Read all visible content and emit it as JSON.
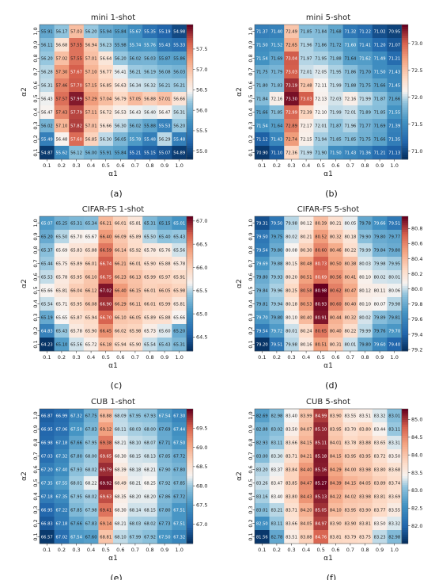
{
  "figure": {
    "colormap": {
      "low": "#1f4e8c",
      "mid": "#f7f4f2",
      "high": "#67001f"
    },
    "panels": [
      {
        "key": "a",
        "label": "(a)",
        "chart_data": {
          "type": "heatmap",
          "title": "mini 1-shot",
          "xlabel": "α1",
          "ylabel": "α2",
          "x": [
            "0.1",
            "0.2",
            "0.3",
            "0.4",
            "0.5",
            "0.6",
            "0.7",
            "0.8",
            "0.9",
            "1.0"
          ],
          "y": [
            "1.0",
            "0.9",
            "0.8",
            "0.7",
            "0.6",
            "0.5",
            "0.4",
            "0.3",
            "0.2",
            "0.1"
          ],
          "z_range": [
            54.8,
            58.1
          ],
          "colorbar_ticks": [
            "55.0",
            "55.5",
            "56.0",
            "56.5",
            "57.0",
            "57.5"
          ],
          "values": [
            [
              55.91,
              56.17,
              57.03,
              56.2,
              55.94,
              55.84,
              55.67,
              55.35,
              55.19,
              54.98
            ],
            [
              56.11,
              56.68,
              57.55,
              56.94,
              56.23,
              55.98,
              55.74,
              55.76,
              55.43,
              55.33
            ],
            [
              56.2,
              57.02,
              57.55,
              57.01,
              56.64,
              56.2,
              56.02,
              56.03,
              55.87,
              55.86
            ],
            [
              56.28,
              57.3,
              57.67,
              57.1,
              56.77,
              56.41,
              56.21,
              56.19,
              56.08,
              56.03
            ],
            [
              56.31,
              57.46,
              57.7,
              57.15,
              56.85,
              56.63,
              56.34,
              56.32,
              56.21,
              56.21
            ],
            [
              56.43,
              57.57,
              57.99,
              57.29,
              57.04,
              56.79,
              57.05,
              56.88,
              57.01,
              56.66
            ],
            [
              56.47,
              57.43,
              57.79,
              57.11,
              56.72,
              56.53,
              56.43,
              56.4,
              56.47,
              56.31
            ],
            [
              56.02,
              57.1,
              57.82,
              57.01,
              56.66,
              56.3,
              56.02,
              55.88,
              55.53,
              56.2
            ],
            [
              55.49,
              56.48,
              57.6,
              56.85,
              56.3,
              56.05,
              55.78,
              55.48,
              56.29,
              55.48
            ],
            [
              54.87,
              55.62,
              56.12,
              56.0,
              55.91,
              55.84,
              55.21,
              55.15,
              55.07,
              54.89
            ]
          ]
        }
      },
      {
        "key": "b",
        "label": "(b)",
        "chart_data": {
          "type": "heatmap",
          "title": "mini 5-shot",
          "xlabel": "α1",
          "ylabel": "α2",
          "x": [
            "0.1",
            "0.2",
            "0.3",
            "0.4",
            "0.5",
            "0.6",
            "0.7",
            "0.8",
            "0.9",
            "1.0"
          ],
          "y": [
            "1.0",
            "0.9",
            "0.8",
            "0.7",
            "0.6",
            "0.5",
            "0.4",
            "0.3",
            "0.2",
            "0.1"
          ],
          "z_range": [
            70.85,
            73.35
          ],
          "colorbar_ticks": [
            "71.0",
            "71.5",
            "72.0",
            "72.5",
            "73.0"
          ],
          "values": [
            [
              71.37,
              71.4,
              72.49,
              71.85,
              71.84,
              71.68,
              71.32,
              71.22,
              71.02,
              70.95
            ],
            [
              71.5,
              71.52,
              72.65,
              71.96,
              71.86,
              71.72,
              71.6,
              71.41,
              71.2,
              71.07
            ],
            [
              71.54,
              71.69,
              73.04,
              71.97,
              71.95,
              71.88,
              71.64,
              71.62,
              71.49,
              71.21
            ],
            [
              71.75,
              71.79,
              73.03,
              72.01,
              72.05,
              71.95,
              71.86,
              71.7,
              71.5,
              71.43
            ],
            [
              71.8,
              71.83,
              73.19,
              72.48,
              72.11,
              71.99,
              71.88,
              71.75,
              71.66,
              71.45
            ],
            [
              71.84,
              72.16,
              73.3,
              73.03,
              72.13,
              72.03,
              72.16,
              71.99,
              71.87,
              71.66
            ],
            [
              71.66,
              71.85,
              72.99,
              72.39,
              72.1,
              71.99,
              72.01,
              71.89,
              71.85,
              71.55
            ],
            [
              71.54,
              71.64,
              72.89,
              72.17,
              72.01,
              71.87,
              71.96,
              71.77,
              71.69,
              71.39
            ],
            [
              71.12,
              71.43,
              72.74,
              72.15,
              71.94,
              71.85,
              71.85,
              71.75,
              71.66,
              71.35
            ],
            [
              70.9,
              71.1,
              72.36,
              71.99,
              71.9,
              71.5,
              71.43,
              71.36,
              71.21,
              71.13
            ]
          ]
        }
      },
      {
        "key": "c",
        "label": "(c)",
        "chart_data": {
          "type": "heatmap",
          "title": "CIFAR-FS 1-shot",
          "xlabel": "α1",
          "ylabel": "α2",
          "x": [
            "0.1",
            "0.2",
            "0.3",
            "0.4",
            "0.5",
            "0.6",
            "0.7",
            "0.8",
            "0.9",
            "1.0"
          ],
          "y": [
            "1.0",
            "0.9",
            "0.8",
            "0.7",
            "0.6",
            "0.5",
            "0.4",
            "0.3",
            "0.2",
            "0.1"
          ],
          "z_range": [
            64.2,
            67.1
          ],
          "colorbar_ticks": [
            "64.5",
            "65.0",
            "65.5",
            "66.0",
            "66.5",
            "67.0"
          ],
          "values": [
            [
              65.07,
              65.25,
              65.31,
              65.34,
              66.21,
              66.01,
              65.81,
              65.31,
              65.15,
              65.01
            ],
            [
              65.2,
              65.5,
              65.7,
              65.67,
              66.4,
              66.09,
              65.89,
              65.5,
              65.4,
              65.43
            ],
            [
              65.37,
              65.69,
              65.83,
              65.88,
              66.59,
              66.14,
              65.92,
              65.78,
              65.76,
              65.56
            ],
            [
              65.44,
              65.75,
              65.89,
              66.01,
              66.74,
              66.21,
              66.01,
              65.9,
              65.88,
              65.78
            ],
            [
              65.53,
              65.78,
              65.95,
              66.1,
              66.75,
              66.23,
              66.13,
              65.99,
              65.97,
              65.91
            ],
            [
              65.66,
              65.81,
              66.04,
              66.12,
              67.02,
              66.4,
              66.15,
              66.01,
              66.05,
              65.98
            ],
            [
              65.54,
              65.71,
              65.95,
              66.08,
              66.9,
              66.29,
              66.11,
              66.01,
              65.99,
              65.81
            ],
            [
              65.19,
              65.65,
              65.87,
              65.94,
              66.7,
              66.1,
              66.05,
              65.89,
              65.88,
              65.66
            ],
            [
              64.83,
              65.43,
              65.78,
              65.9,
              66.45,
              66.02,
              65.98,
              65.73,
              65.6,
              65.2
            ],
            [
              64.23,
              65.1,
              65.56,
              65.72,
              66.18,
              65.94,
              65.9,
              65.54,
              65.43,
              65.31
            ]
          ]
        }
      },
      {
        "key": "d",
        "label": "(d)",
        "chart_data": {
          "type": "heatmap",
          "title": "CIFAR-FS 5-shot",
          "xlabel": "α1",
          "ylabel": "α2",
          "x": [
            "0.1",
            "0.2",
            "0.3",
            "0.4",
            "0.5",
            "0.6",
            "0.7",
            "0.8",
            "0.9",
            "1.0"
          ],
          "y": [
            "1.0",
            "0.9",
            "0.8",
            "0.7",
            "0.6",
            "0.5",
            "0.4",
            "0.3",
            "0.2",
            "0.1"
          ],
          "z_range": [
            79.18,
            80.96
          ],
          "colorbar_ticks": [
            "79.2",
            "79.4",
            "79.6",
            "79.8",
            "80.0",
            "80.2",
            "80.4",
            "80.6",
            "80.8"
          ],
          "values": [
            [
              79.31,
              79.5,
              79.98,
              80.12,
              80.39,
              80.21,
              80.05,
              79.78,
              79.66,
              79.51
            ],
            [
              79.5,
              79.75,
              80.02,
              80.21,
              80.52,
              80.32,
              80.18,
              79.9,
              79.8,
              79.77
            ],
            [
              79.54,
              79.8,
              80.08,
              80.3,
              80.6,
              80.46,
              80.22,
              79.99,
              79.84,
              79.8
            ],
            [
              79.69,
              79.88,
              80.15,
              80.48,
              80.73,
              80.5,
              80.38,
              80.03,
              79.98,
              79.95
            ],
            [
              79.8,
              79.93,
              80.2,
              80.51,
              80.69,
              80.56,
              80.41,
              80.1,
              80.02,
              80.01
            ],
            [
              79.84,
              79.96,
              80.25,
              80.58,
              80.98,
              80.62,
              80.47,
              80.12,
              80.11,
              80.06
            ],
            [
              79.81,
              79.94,
              80.18,
              80.53,
              80.93,
              80.6,
              80.4,
              80.1,
              80.07,
              79.98
            ],
            [
              79.7,
              79.8,
              80.1,
              80.4,
              80.91,
              80.44,
              80.32,
              80.02,
              79.89,
              79.81
            ],
            [
              79.54,
              79.72,
              80.01,
              80.24,
              80.65,
              80.4,
              80.22,
              79.99,
              79.76,
              79.7
            ],
            [
              79.2,
              79.51,
              79.98,
              80.16,
              80.51,
              80.31,
              80.01,
              79.8,
              79.6,
              79.4
            ]
          ]
        }
      },
      {
        "key": "e",
        "label": "(e)",
        "chart_data": {
          "type": "heatmap",
          "title": "CUB 1-shot",
          "xlabel": "α1",
          "ylabel": "α2",
          "x": [
            "0.1",
            "0.2",
            "0.3",
            "0.4",
            "0.5",
            "0.6",
            "0.7",
            "0.8",
            "0.9",
            "1.0"
          ],
          "y": [
            "1.0",
            "0.9",
            "0.8",
            "0.7",
            "0.6",
            "0.5",
            "0.4",
            "0.3",
            "0.2",
            "0.1"
          ],
          "z_range": [
            66.5,
            70.0
          ],
          "colorbar_ticks": [
            "67.0",
            "67.5",
            "68.0",
            "68.5",
            "69.0",
            "69.5"
          ],
          "values": [
            [
              66.87,
              66.99,
              67.32,
              67.75,
              68.88,
              68.09,
              67.95,
              67.93,
              67.54,
              67.3
            ],
            [
              66.95,
              67.06,
              67.5,
              67.83,
              69.12,
              68.11,
              68.03,
              68.0,
              67.69,
              67.44
            ],
            [
              66.98,
              67.18,
              67.66,
              67.95,
              69.38,
              68.21,
              68.1,
              68.07,
              67.71,
              67.5
            ],
            [
              67.03,
              67.32,
              67.8,
              68.0,
              69.65,
              68.3,
              68.15,
              68.13,
              67.85,
              67.72
            ],
            [
              67.2,
              67.4,
              67.93,
              68.02,
              69.79,
              68.39,
              68.18,
              68.21,
              67.9,
              67.8
            ],
            [
              67.35,
              67.55,
              68.01,
              68.22,
              69.92,
              68.49,
              68.21,
              68.25,
              67.92,
              67.85
            ],
            [
              67.18,
              67.35,
              67.95,
              68.02,
              69.63,
              68.35,
              68.2,
              68.2,
              67.86,
              67.72
            ],
            [
              66.95,
              67.22,
              67.85,
              67.98,
              69.41,
              68.3,
              68.14,
              68.15,
              67.8,
              67.51
            ],
            [
              66.83,
              67.18,
              67.66,
              67.83,
              69.14,
              68.21,
              68.03,
              68.02,
              67.73,
              67.51
            ],
            [
              66.57,
              67.02,
              67.54,
              67.6,
              68.81,
              68.1,
              67.99,
              67.92,
              67.5,
              67.32
            ]
          ]
        }
      },
      {
        "key": "f",
        "label": "(f)",
        "chart_data": {
          "type": "heatmap",
          "title": "CUB 5-shot",
          "xlabel": "α1",
          "ylabel": "α2",
          "x": [
            "0.1",
            "0.2",
            "0.3",
            "0.4",
            "0.5",
            "0.6",
            "0.7",
            "0.8",
            "0.9",
            "1.0"
          ],
          "y": [
            "1.0",
            "0.9",
            "0.8",
            "0.7",
            "0.6",
            "0.5",
            "0.4",
            "0.3",
            "0.2",
            "0.1"
          ],
          "z_range": [
            81.5,
            85.3
          ],
          "colorbar_ticks": [
            "82.0",
            "82.5",
            "83.0",
            "83.5",
            "84.0",
            "84.5",
            "85.0"
          ],
          "values": [
            [
              82.69,
              82.98,
              83.4,
              83.99,
              84.99,
              83.9,
              83.55,
              83.51,
              83.32,
              83.01
            ],
            [
              82.88,
              83.02,
              83.5,
              84.07,
              85.1,
              83.95,
              83.7,
              83.8,
              83.44,
              83.11
            ],
            [
              82.93,
              83.11,
              83.66,
              84.15,
              85.11,
              84.01,
              83.78,
              83.88,
              83.65,
              83.31
            ],
            [
              83.0,
              83.3,
              83.71,
              84.21,
              85.18,
              84.15,
              83.95,
              83.95,
              83.72,
              83.5
            ],
            [
              83.2,
              83.37,
              83.84,
              84.4,
              85.16,
              84.29,
              84.0,
              83.98,
              83.8,
              83.68
            ],
            [
              83.26,
              83.47,
              83.85,
              84.47,
              85.27,
              84.39,
              84.15,
              84.05,
              83.89,
              83.74
            ],
            [
              83.16,
              83.4,
              83.8,
              84.43,
              85.13,
              84.22,
              84.02,
              83.98,
              83.81,
              83.69
            ],
            [
              83.01,
              83.21,
              83.71,
              84.2,
              85.05,
              84.1,
              83.95,
              83.9,
              83.77,
              83.55
            ],
            [
              82.5,
              83.11,
              83.66,
              84.05,
              84.97,
              83.9,
              83.9,
              83.81,
              83.5,
              83.32
            ],
            [
              81.56,
              82.78,
              83.51,
              83.88,
              84.76,
              83.81,
              83.79,
              83.75,
              83.23,
              82.98
            ]
          ]
        }
      }
    ]
  }
}
